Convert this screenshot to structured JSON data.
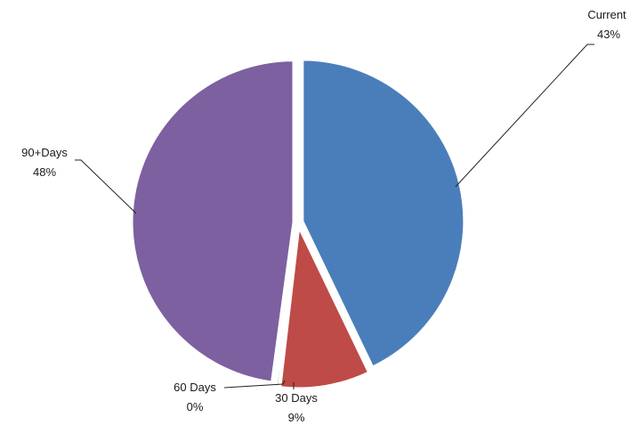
{
  "chart_data": {
    "type": "pie",
    "title": "",
    "slices": [
      {
        "label": "Current",
        "percent_text": "43%",
        "value": 43,
        "color": "#4a7ebb"
      },
      {
        "label": "30 Days",
        "percent_text": "9%",
        "value": 9,
        "color": "#be4b48"
      },
      {
        "label": "60 Days",
        "percent_text": "0%",
        "value": 0.3,
        "color": "#9bbb59"
      },
      {
        "label": "90+Days",
        "percent_text": "48%",
        "value": 48,
        "color": "#7d60a0"
      }
    ],
    "legend": "none",
    "data_labels": "outside with leader lines"
  }
}
